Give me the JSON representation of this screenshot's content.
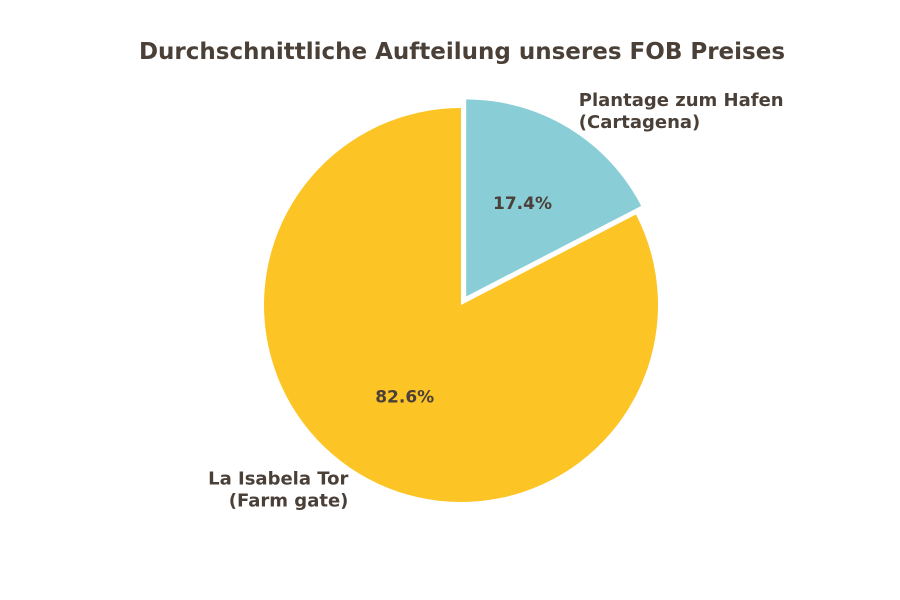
{
  "chart_data": {
    "type": "pie",
    "title": "Durchschnittliche Aufteilung unseres FOB Preises",
    "slices": [
      {
        "label_lines": [
          "Plantage zum Hafen",
          "(Cartagena)"
        ],
        "value": 17.4,
        "value_label": "17.4%",
        "color": "#89cdd7",
        "exploded": true
      },
      {
        "label_lines": [
          "La Isabela Tor",
          "(Farm gate)"
        ],
        "value": 82.6,
        "value_label": "82.6%",
        "color": "#fcc425",
        "exploded": false
      }
    ],
    "legend": "none",
    "start_angle": "12 o'clock",
    "direction": "clockwise"
  },
  "colors": {
    "text": "#4a4038",
    "background": "#ffffff"
  }
}
